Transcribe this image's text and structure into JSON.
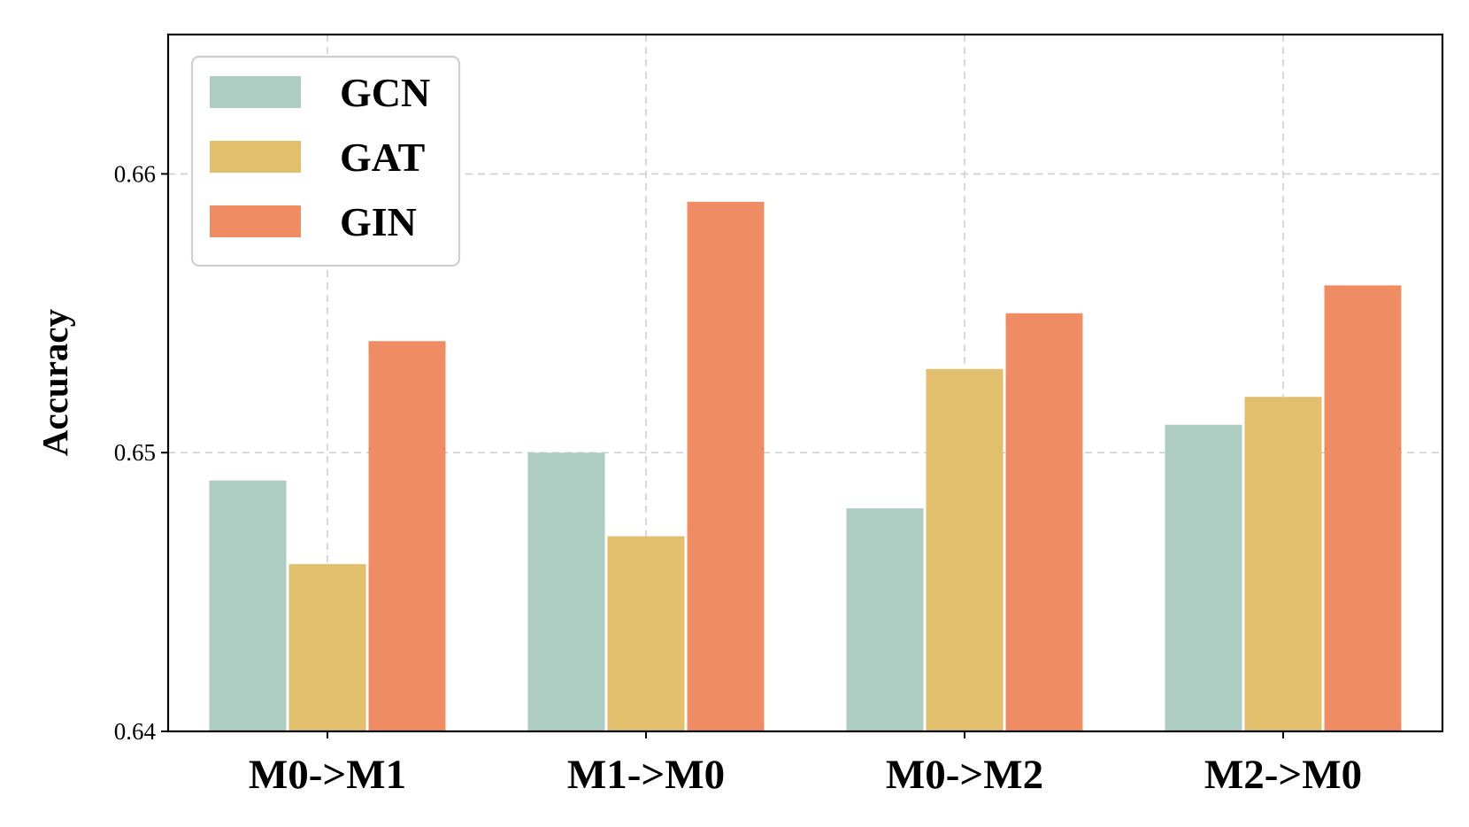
{
  "chart_data": {
    "type": "bar",
    "title": "",
    "xlabel": "",
    "ylabel": "Accuracy",
    "ylim": [
      0.64,
      0.665
    ],
    "yticks": [
      0.64,
      0.65,
      0.66
    ],
    "ytick_labels": [
      "0.64",
      "0.65",
      "0.66"
    ],
    "categories": [
      "M0->M1",
      "M1->M0",
      "M0->M2",
      "M2->M0"
    ],
    "grid": true,
    "legend_position": "top-left",
    "series": [
      {
        "name": "GCN",
        "color": "#aecdc2",
        "values": [
          0.649,
          0.65,
          0.648,
          0.651
        ]
      },
      {
        "name": "GAT",
        "color": "#e1bf6c",
        "values": [
          0.646,
          0.647,
          0.653,
          0.652
        ]
      },
      {
        "name": "GIN",
        "color": "#f08c64",
        "values": [
          0.654,
          0.659,
          0.655,
          0.656
        ]
      }
    ]
  }
}
